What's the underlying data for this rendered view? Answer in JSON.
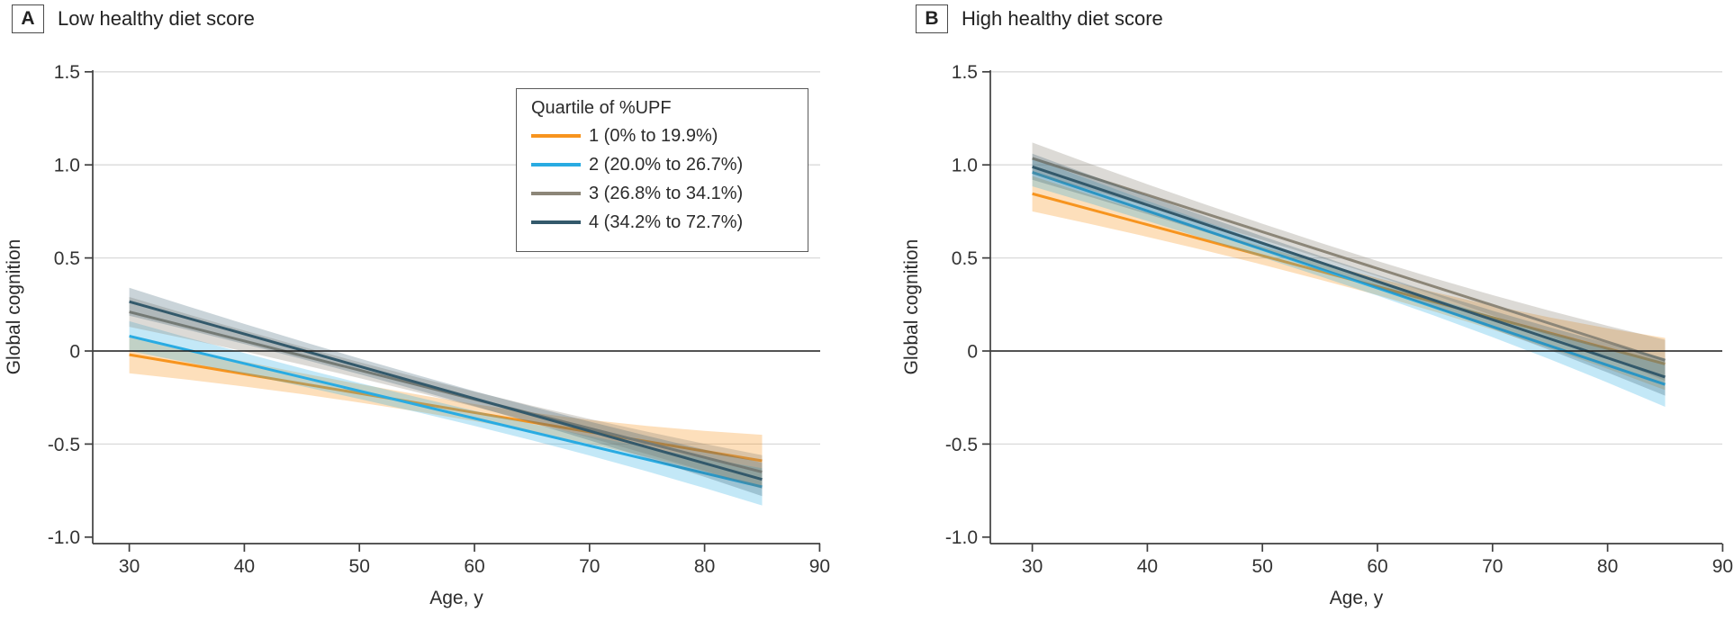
{
  "figure": {
    "ylabel": "Global cognition",
    "xlabel": "Age, y",
    "panels": [
      {
        "tag": "A",
        "title": "Low healthy diet score"
      },
      {
        "tag": "B",
        "title": "High healthy diet score"
      }
    ]
  },
  "legend": {
    "title": "Quartile of %UPF",
    "items": [
      {
        "label": "1 (0% to 19.9%)",
        "color": "#F7941E"
      },
      {
        "label": "2 (20.0% to 26.7%)",
        "color": "#29ABE2"
      },
      {
        "label": "3 (26.8% to 34.1%)",
        "color": "#8C8678"
      },
      {
        "label": "4 (34.2% to 72.7%)",
        "color": "#33596B"
      }
    ]
  },
  "colors": {
    "grid": "#d9d9d9",
    "zero_line": "#1a1a1a",
    "axis": "#3f3f3f",
    "tick_text": "#333333"
  },
  "chart_data": [
    {
      "type": "line",
      "panel": "A",
      "title": "Low healthy diet score",
      "xlabel": "Age, y",
      "ylabel": "Global cognition",
      "x_ticks": [
        30,
        40,
        50,
        60,
        70,
        80,
        90
      ],
      "y_ticks": [
        1.5,
        1.0,
        0.5,
        0,
        -0.5,
        -1.0
      ],
      "ylim": [
        -1.0,
        1.5
      ],
      "data_age_range": [
        30,
        85
      ],
      "grid": "horizontal-light, zero-reference-black",
      "legend_position": "top-right-inside",
      "series": [
        {
          "name": "1 (0% to 19.9%)",
          "color": "#F7941E",
          "band_opacity": 0.3,
          "y_at_age30": -0.02,
          "y_at_age85": -0.59,
          "ci_halfwidth_age30": 0.1,
          "ci_halfwidth_mid": 0.045,
          "ci_halfwidth_age85": 0.14
        },
        {
          "name": "2 (20.0% to 26.7%)",
          "color": "#29ABE2",
          "band_opacity": 0.28,
          "y_at_age30": 0.08,
          "y_at_age85": -0.73,
          "ci_halfwidth_age30": 0.08,
          "ci_halfwidth_mid": 0.04,
          "ci_halfwidth_age85": 0.1
        },
        {
          "name": "3 (26.8% to 34.1%)",
          "color": "#8C8678",
          "band_opacity": 0.3,
          "y_at_age30": 0.21,
          "y_at_age85": -0.65,
          "ci_halfwidth_age30": 0.08,
          "ci_halfwidth_mid": 0.04,
          "ci_halfwidth_age85": 0.09
        },
        {
          "name": "4 (34.2% to 72.7%)",
          "color": "#33596B",
          "band_opacity": 0.26,
          "y_at_age30": 0.265,
          "y_at_age85": -0.69,
          "ci_halfwidth_age30": 0.075,
          "ci_halfwidth_mid": 0.04,
          "ci_halfwidth_age85": 0.09
        }
      ]
    },
    {
      "type": "line",
      "panel": "B",
      "title": "High healthy diet score",
      "xlabel": "Age, y",
      "ylabel": "Global cognition",
      "x_ticks": [
        30,
        40,
        50,
        60,
        70,
        80,
        90
      ],
      "y_ticks": [
        1.5,
        1.0,
        0.5,
        0,
        -0.5,
        -1.0
      ],
      "ylim": [
        -1.0,
        1.5
      ],
      "data_age_range": [
        30,
        85
      ],
      "grid": "horizontal-light, zero-reference-black",
      "legend_position": "none",
      "series": [
        {
          "name": "1 (0% to 19.9%)",
          "color": "#F7941E",
          "band_opacity": 0.3,
          "y_at_age30": 0.845,
          "y_at_age85": -0.07,
          "ci_halfwidth_age30": 0.095,
          "ci_halfwidth_mid": 0.045,
          "ci_halfwidth_age85": 0.14
        },
        {
          "name": "2 (20.0% to 26.7%)",
          "color": "#29ABE2",
          "band_opacity": 0.28,
          "y_at_age30": 0.96,
          "y_at_age85": -0.18,
          "ci_halfwidth_age30": 0.075,
          "ci_halfwidth_mid": 0.04,
          "ci_halfwidth_age85": 0.12
        },
        {
          "name": "3 (26.8% to 34.1%)",
          "color": "#8C8678",
          "band_opacity": 0.3,
          "y_at_age30": 1.035,
          "y_at_age85": -0.05,
          "ci_halfwidth_age30": 0.085,
          "ci_halfwidth_mid": 0.04,
          "ci_halfwidth_age85": 0.11
        },
        {
          "name": "4 (34.2% to 72.7%)",
          "color": "#33596B",
          "band_opacity": 0.26,
          "y_at_age30": 0.99,
          "y_at_age85": -0.14,
          "ci_halfwidth_age30": 0.07,
          "ci_halfwidth_mid": 0.035,
          "ci_halfwidth_age85": 0.1
        }
      ]
    }
  ]
}
